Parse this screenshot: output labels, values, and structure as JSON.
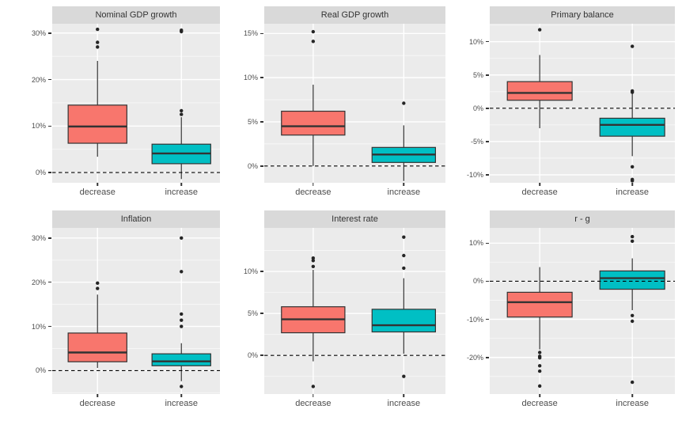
{
  "chart_data": {
    "type": "boxplot",
    "facet_layout": {
      "rows": 2,
      "cols": 3,
      "grid": true,
      "legend": "none"
    },
    "categories": [
      "decrease",
      "increase"
    ],
    "series_colors": {
      "decrease": "#F8766D",
      "increase": "#00BFC4"
    },
    "unit": "%",
    "style": {
      "panel_bg": "#EBEBEB",
      "strip_bg": "#D9D9D9",
      "grid_major": "#FFFFFF",
      "grid_minor": "#FFFFFF",
      "box_outline": "#333333",
      "outlier_color": "#252525",
      "zero_line_color": "#000000",
      "tick_label_color": "#4D4D4D",
      "strip_text_color": "#333333"
    },
    "panels": [
      {
        "title": "Nominal GDP growth",
        "ylim": [
          -2.2,
          32.0
        ],
        "yticks": [
          0,
          10,
          20,
          30
        ],
        "zero_line": 0,
        "boxes": [
          {
            "category": "decrease",
            "whisker_low": 3.4,
            "q1": 6.3,
            "median": 9.9,
            "q3": 14.5,
            "whisker_high": 24.0,
            "outliers": [
              27.0,
              28.0,
              30.8
            ]
          },
          {
            "category": "increase",
            "whisker_low": -1.4,
            "q1": 1.9,
            "median": 4.1,
            "q3": 6.1,
            "whisker_high": 11.9,
            "outliers": [
              12.5,
              13.3,
              30.3,
              30.6
            ]
          }
        ]
      },
      {
        "title": "Real GDP growth",
        "ylim": [
          -1.9,
          16.1
        ],
        "yticks": [
          0,
          5,
          10,
          15
        ],
        "zero_line": 0,
        "boxes": [
          {
            "category": "decrease",
            "whisker_low": 0.0,
            "q1": 3.5,
            "median": 4.5,
            "q3": 6.2,
            "whisker_high": 9.2,
            "outliers": [
              14.1,
              15.2
            ]
          },
          {
            "category": "increase",
            "whisker_low": -1.7,
            "q1": 0.4,
            "median": 1.3,
            "q3": 2.1,
            "whisker_high": 4.6,
            "outliers": [
              7.1
            ]
          }
        ]
      },
      {
        "title": "Primary balance",
        "ylim": [
          -11.2,
          12.7
        ],
        "yticks": [
          -10,
          -5,
          0,
          5,
          10
        ],
        "zero_line": 0,
        "boxes": [
          {
            "category": "decrease",
            "whisker_low": -3.0,
            "q1": 1.2,
            "median": 2.3,
            "q3": 4.0,
            "whisker_high": 8.0,
            "outliers": [
              11.8
            ]
          },
          {
            "category": "increase",
            "whisker_low": -7.2,
            "q1": -4.2,
            "median": -2.5,
            "q3": -1.5,
            "whisker_high": 2.3,
            "outliers": [
              9.3,
              2.6,
              2.4,
              -8.8,
              -10.7,
              -10.9
            ]
          }
        ]
      },
      {
        "title": "Inflation",
        "ylim": [
          -5.3,
          32.3
        ],
        "yticks": [
          0,
          10,
          20,
          30
        ],
        "zero_line": 0,
        "boxes": [
          {
            "category": "decrease",
            "whisker_low": 0.6,
            "q1": 2.0,
            "median": 4.1,
            "q3": 8.5,
            "whisker_high": 17.2,
            "outliers": [
              18.6,
              19.8
            ]
          },
          {
            "category": "increase",
            "whisker_low": -2.4,
            "q1": 1.1,
            "median": 2.1,
            "q3": 3.8,
            "whisker_high": 6.2,
            "outliers": [
              30.0,
              22.4,
              12.8,
              11.4,
              10.0,
              -3.6
            ]
          }
        ]
      },
      {
        "title": "Interest rate",
        "ylim": [
          -4.6,
          15.2
        ],
        "yticks": [
          0,
          5,
          10
        ],
        "zero_line": 0,
        "boxes": [
          {
            "category": "decrease",
            "whisker_low": -0.7,
            "q1": 2.7,
            "median": 4.3,
            "q3": 5.8,
            "whisker_high": 10.2,
            "outliers": [
              11.6,
              11.3,
              10.6,
              -3.7
            ]
          },
          {
            "category": "increase",
            "whisker_low": 0.2,
            "q1": 2.8,
            "median": 3.6,
            "q3": 5.5,
            "whisker_high": 9.2,
            "outliers": [
              14.1,
              11.9,
              10.4,
              -2.5
            ]
          }
        ]
      },
      {
        "title": "r - g",
        "ylim": [
          -29.6,
          14.0
        ],
        "yticks": [
          -20,
          -10,
          0,
          10
        ],
        "zero_line": 0,
        "boxes": [
          {
            "category": "decrease",
            "whisker_low": -17.9,
            "q1": -9.4,
            "median": -5.5,
            "q3": -2.9,
            "whisker_high": 3.7,
            "outliers": [
              -18.7,
              -19.7,
              -20.1,
              -22.2,
              -23.6,
              -27.5
            ]
          },
          {
            "category": "increase",
            "whisker_low": -7.6,
            "q1": -2.1,
            "median": 0.8,
            "q3": 2.7,
            "whisker_high": 6.0,
            "outliers": [
              11.7,
              10.5,
              -9.0,
              -10.5,
              -26.5
            ]
          }
        ]
      }
    ]
  }
}
